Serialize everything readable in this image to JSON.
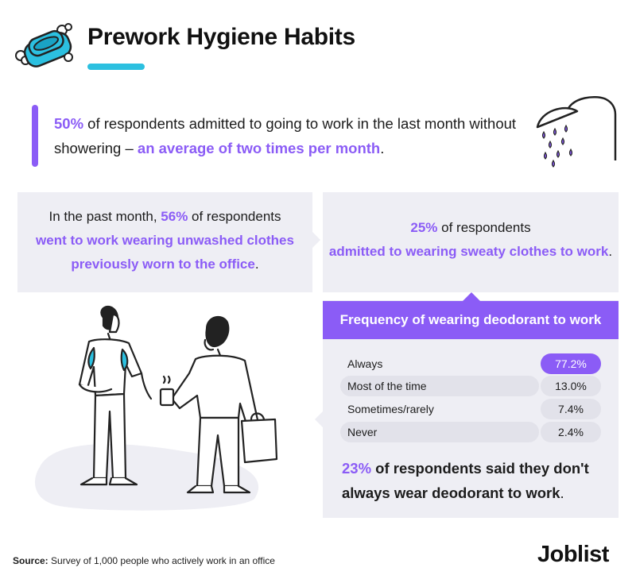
{
  "header": {
    "title": "Prework Hygiene Habits"
  },
  "intro": {
    "pct": "50%",
    "text_1": " of respondents admitted to going to work in the last month without showering – ",
    "highlight": "an average of two times per month",
    "end": "."
  },
  "left_panel": {
    "text_1": "In the past month, ",
    "pct": "56%",
    "text_2": " of respondents ",
    "highlight": "went to work wearing unwashed clothes previously worn to the office",
    "end": "."
  },
  "right_panel": {
    "pct": "25%",
    "text_1": " of respondents ",
    "highlight": "admitted to wearing sweaty clothes to work",
    "end": "."
  },
  "deodorant": {
    "title": "Frequency of wearing deodorant to work",
    "rows": [
      {
        "label": "Always",
        "value": "77.2%"
      },
      {
        "label": "Most of the time",
        "value": "13.0%"
      },
      {
        "label": "Sometimes/rarely",
        "value": "7.4%"
      },
      {
        "label": "Never",
        "value": "2.4%"
      }
    ],
    "note_pct": "23%",
    "note_text": " of respondents said they don't always wear deodorant to work",
    "note_end": "."
  },
  "footer": {
    "source_label": "Source:",
    "source_text": " Survey of 1,000 people who actively work in an office",
    "logo": "Joblist"
  },
  "colors": {
    "purple": "#8b5cf6",
    "cyan": "#2cc0e0",
    "panel": "#eeeef4"
  },
  "icons": [
    "soap-icon",
    "shower-head-icon",
    "people-illustration"
  ]
}
